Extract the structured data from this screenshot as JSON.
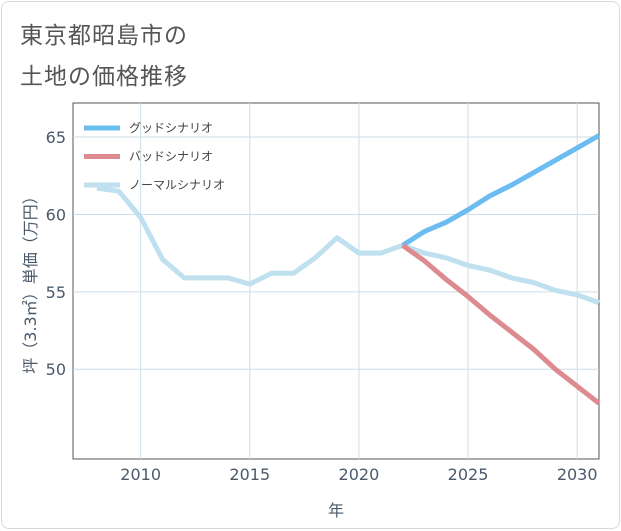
{
  "title": {
    "line1": "東京都昭島市の",
    "line2": "土地の価格推移"
  },
  "chart_data": {
    "type": "line",
    "xlabel": "年",
    "ylabel": "坪（3.3㎡）単価（万円）",
    "xlim": [
      2006.9,
      2031
    ],
    "ylim": [
      44.2,
      67.2
    ],
    "xticks": [
      "2010",
      "2015",
      "2020",
      "2025",
      "2030"
    ],
    "yticks": [
      "50",
      "55",
      "60",
      "65"
    ],
    "grid": true,
    "legend_position": "top-left",
    "series": [
      {
        "name": "グッドシナリオ",
        "color": "#6bbcf0",
        "x": [
          2022,
          2023,
          2024,
          2025,
          2026,
          2027,
          2028,
          2029,
          2030,
          2031
        ],
        "y": [
          58.0,
          58.9,
          59.5,
          60.3,
          61.2,
          61.9,
          62.7,
          63.5,
          64.3,
          65.1
        ]
      },
      {
        "name": "バッドシナリオ",
        "color": "#dd8a90",
        "x": [
          2022,
          2023,
          2024,
          2025,
          2026,
          2027,
          2028,
          2029,
          2030,
          2031
        ],
        "y": [
          58.0,
          57.0,
          55.8,
          54.7,
          53.5,
          52.4,
          51.3,
          50.0,
          48.9,
          47.8
        ]
      },
      {
        "name": "ノーマルシナリオ",
        "color": "#bfe0ee",
        "x": [
          2008,
          2009,
          2010,
          2011,
          2012,
          2013,
          2014,
          2015,
          2016,
          2017,
          2018,
          2019,
          2020,
          2021,
          2022,
          2023,
          2024,
          2025,
          2026,
          2027,
          2028,
          2029,
          2030,
          2031
        ],
        "y": [
          61.7,
          61.5,
          59.8,
          57.1,
          55.9,
          55.9,
          55.9,
          55.5,
          56.2,
          56.2,
          57.2,
          58.5,
          57.5,
          57.5,
          58.0,
          57.5,
          57.2,
          56.7,
          56.4,
          55.9,
          55.6,
          55.1,
          54.8,
          54.3
        ]
      }
    ]
  }
}
